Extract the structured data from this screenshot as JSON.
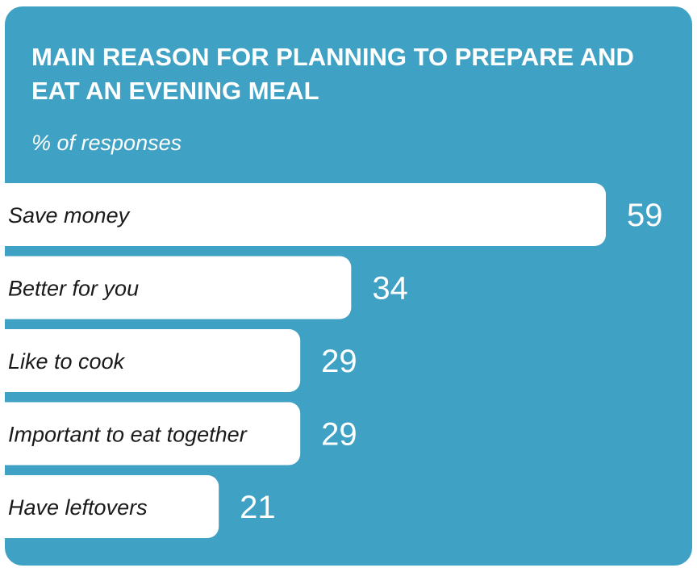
{
  "colors": {
    "background": "#3fa1c3",
    "bar": "#ffffff",
    "text_on_bar": "#1a1a1a",
    "value_text": "#ffffff"
  },
  "chart_data": {
    "type": "bar",
    "orientation": "horizontal",
    "title": "MAIN REASON FOR PLANNING TO PREPARE AND EAT AN EVENING MEAL",
    "subtitle": "% of responses",
    "categories": [
      "Save money",
      "Better for you",
      "Like to cook",
      "Important to eat together",
      "Have leftovers"
    ],
    "values": [
      59,
      34,
      29,
      29,
      21
    ],
    "unit": "%",
    "xlim": [
      0,
      68
    ],
    "grid": false,
    "legend": "none"
  }
}
